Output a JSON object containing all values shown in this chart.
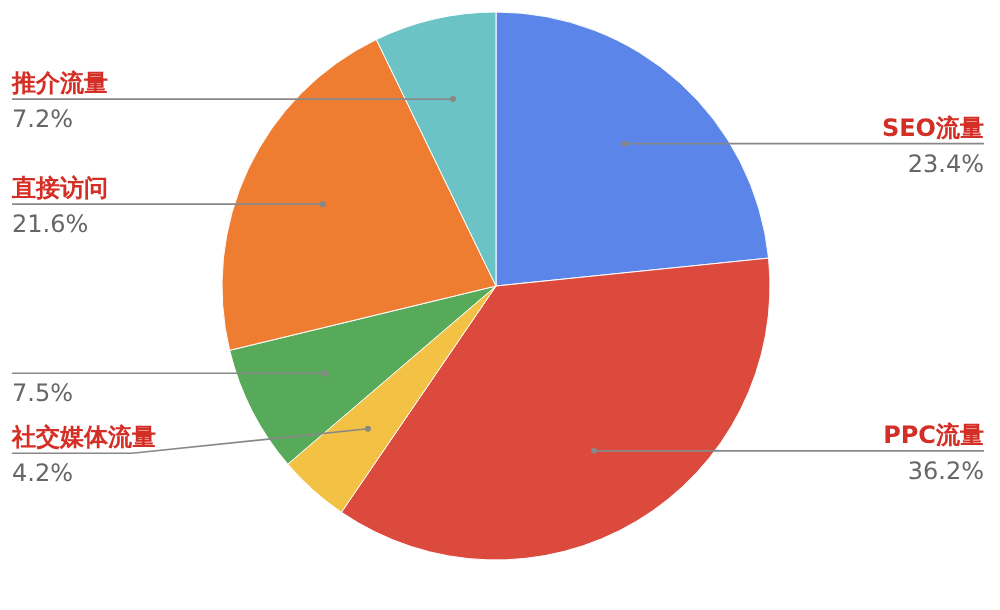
{
  "chart_data": {
    "type": "pie",
    "categories": [
      "SEO流量",
      "PPC流量",
      "社交媒体流量",
      null,
      "直接访问",
      "推介流量"
    ],
    "values": [
      23.4,
      36.2,
      4.2,
      7.5,
      21.6,
      7.2
    ],
    "colors": [
      "#5b85e8",
      "#dc4a3d",
      "#f3c144",
      "#58aa5b",
      "#ee7c31",
      "#6bc3c6"
    ],
    "value_labels": [
      "23.4%",
      "36.2%",
      "4.2%",
      "7.5%",
      "21.6%",
      "7.2%"
    ]
  }
}
